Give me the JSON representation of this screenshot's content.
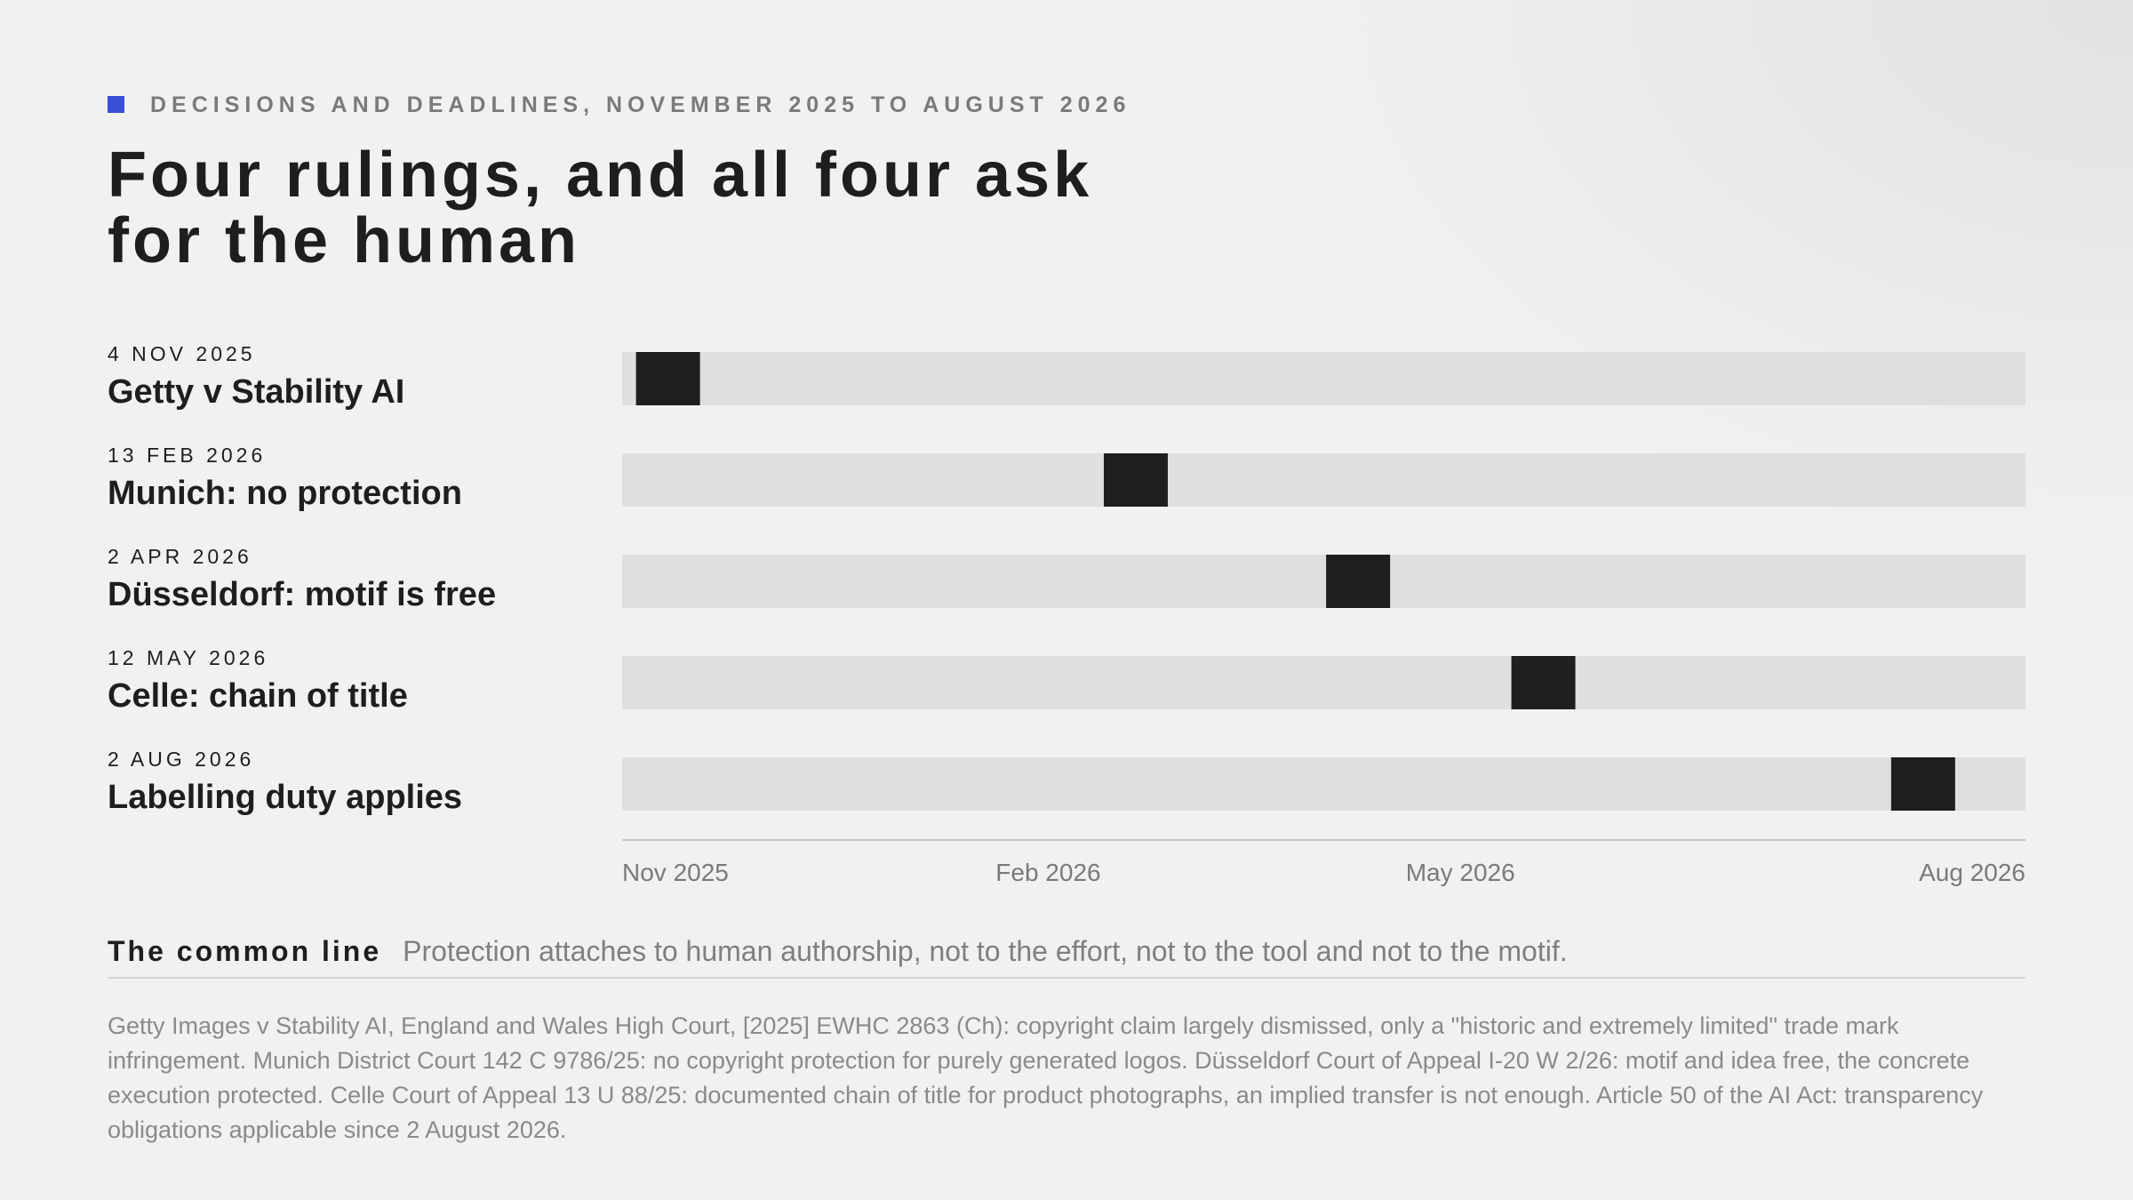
{
  "kicker": "DECISIONS AND DEADLINES, NOVEMBER 2025 TO AUGUST 2026",
  "chart_data": {
    "type": "timeline",
    "title": "Four rulings, and all four ask for the human",
    "events": [
      {
        "date_label": "4 NOV 2025",
        "label": "Getty v Stability AI",
        "x": "2025-11-04"
      },
      {
        "date_label": "13 FEB 2026",
        "label": "Munich: no protection",
        "x": "2026-02-13"
      },
      {
        "date_label": "2 APR 2026",
        "label": "Düsseldorf: motif is free",
        "x": "2026-04-02"
      },
      {
        "date_label": "12 MAY 2026",
        "label": "Celle: chain of title",
        "x": "2026-05-12"
      },
      {
        "date_label": "2 AUG 2026",
        "label": "Labelling duty applies",
        "x": "2026-08-02"
      }
    ],
    "color": "#1f1f1f",
    "xlim": [
      "2025-11-01",
      "2026-08-31"
    ],
    "xticks": [
      {
        "value": "2025-11-01",
        "label": "Nov 2025"
      },
      {
        "value": "2026-02-01",
        "label": "Feb 2026"
      },
      {
        "value": "2026-05-01",
        "label": "May 2026"
      },
      {
        "value": "2026-08-01",
        "label": "Aug 2026"
      }
    ]
  },
  "common_line": {
    "heading": "The common line",
    "text": "Protection attaches to human authorship, not to the effort, not to the tool and not to the motif."
  },
  "footnote": "Getty Images v Stability AI, England and Wales High Court, [2025] EWHC 2863 (Ch): copyright claim largely dismissed, only a \"historic and extremely limited\" trade mark infringement. Munich District Court 142 C 9786/25: no copyright protection for purely generated logos. Düsseldorf Court of Appeal I-20 W 2/26: motif and idea free, the concrete execution protected. Celle Court of Appeal 13 U 88/25: documented chain of title for product photographs, an implied transfer is not enough. Article 50 of the AI Act: transparency obligations applicable since 2 August 2026."
}
